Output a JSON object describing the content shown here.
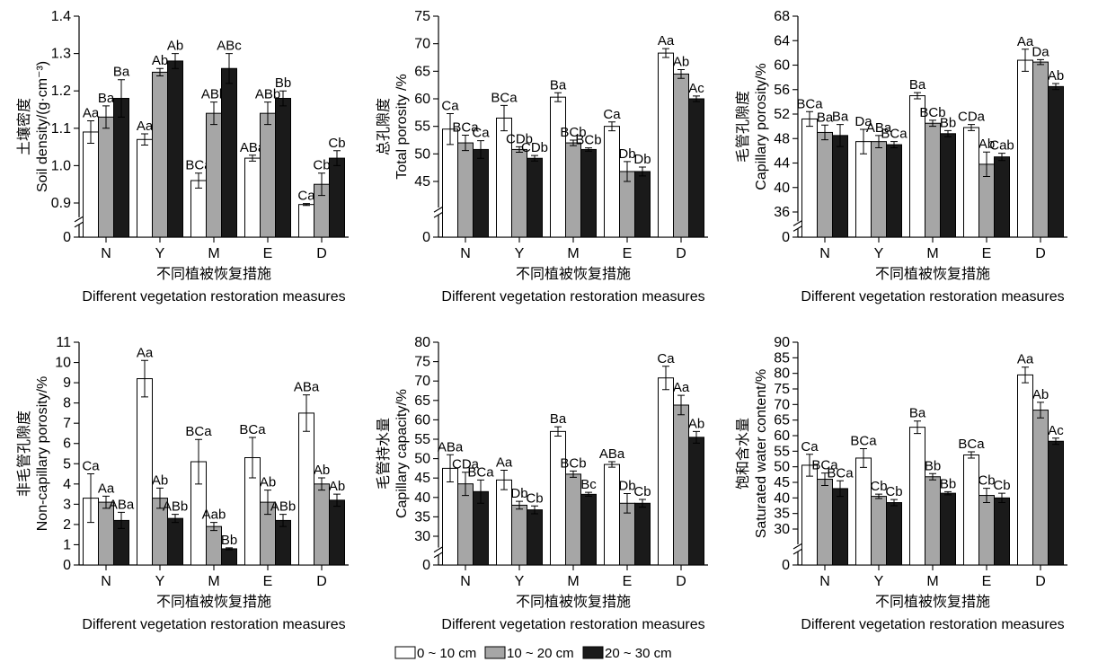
{
  "colors": {
    "s1_fill": "#ffffff",
    "s2_fill": "#a6a6a6",
    "s3_fill": "#1a1a1a",
    "stroke": "#000000"
  },
  "legend": {
    "items": [
      {
        "label": "0 ~ 10 cm",
        "color": "#ffffff"
      },
      {
        "label": "10 ~ 20 cm",
        "color": "#a6a6a6"
      },
      {
        "label": "20 ~ 30 cm",
        "color": "#1a1a1a"
      }
    ]
  },
  "chart_data": [
    {
      "type": "bar",
      "categories": [
        "N",
        "Y",
        "M",
        "E",
        "D"
      ],
      "ylabel_cn": "土壤密度",
      "ylabel_en": "Soil density/(g·cm⁻³)",
      "xlabel_cn": "不同植被恢复措施",
      "xlabel_en": "Different vegetation restoration measures",
      "axis_break": true,
      "break_range": [
        0,
        0.8
      ],
      "yticks": [
        0,
        0.9,
        1.0,
        1.1,
        1.2,
        1.3,
        1.4
      ],
      "ytick_labels": [
        "0",
        "0.9",
        "1.0",
        "1.1",
        "1.2",
        "1.3",
        "1.4"
      ],
      "series": [
        {
          "values": [
            1.09,
            1.07,
            0.96,
            1.02,
            0.86
          ],
          "errors": [
            0.03,
            0.015,
            0.02,
            0.008,
            0.025
          ],
          "labels": [
            "Aa",
            "Aa",
            "BCa",
            "ABa",
            "Ca"
          ]
        },
        {
          "values": [
            1.13,
            1.25,
            1.14,
            1.14,
            0.95
          ],
          "errors": [
            0.03,
            0.01,
            0.03,
            0.03,
            0.03
          ],
          "labels": [
            "Ba",
            "Ab",
            "ABb",
            "ABb",
            "Cb"
          ]
        },
        {
          "values": [
            1.18,
            1.28,
            1.26,
            1.18,
            1.02
          ],
          "errors": [
            0.05,
            0.02,
            0.04,
            0.02,
            0.02
          ],
          "labels": [
            "Ba",
            "Ab",
            "ABc",
            "Bb",
            "Cb"
          ]
        }
      ]
    },
    {
      "type": "bar",
      "categories": [
        "N",
        "Y",
        "M",
        "E",
        "D"
      ],
      "ylabel_cn": "总孔隙度",
      "ylabel_en": "Total porosity /%",
      "xlabel_cn": "不同植被恢复措施",
      "xlabel_en": "Different vegetation restoration measures",
      "axis_break": true,
      "break_range": [
        0,
        40
      ],
      "yticks": [
        0,
        45,
        50,
        55,
        60,
        65,
        70,
        75
      ],
      "ytick_labels": [
        "0",
        "45",
        "50",
        "55",
        "60",
        "65",
        "70",
        "75"
      ],
      "series": [
        {
          "values": [
            54.5,
            56.5,
            60.3,
            55.0,
            68.3
          ],
          "errors": [
            2.8,
            2.3,
            0.8,
            0.8,
            0.8
          ],
          "labels": [
            "Ca",
            "BCa",
            "Ba",
            "Ca",
            "Aa"
          ]
        },
        {
          "values": [
            52.0,
            50.8,
            52.0,
            46.8,
            64.5
          ],
          "errors": [
            1.4,
            0.5,
            0.5,
            1.8,
            0.8
          ],
          "labels": [
            "BCa",
            "CDb",
            "BCb",
            "Db",
            "Ab"
          ]
        },
        {
          "values": [
            50.8,
            49.2,
            50.8,
            46.8,
            60.0
          ],
          "errors": [
            1.6,
            0.5,
            0.3,
            0.8,
            0.5
          ],
          "labels": [
            "Ca",
            "CDb",
            "BCb",
            "Db",
            "Ac"
          ]
        }
      ]
    },
    {
      "type": "bar",
      "categories": [
        "N",
        "Y",
        "M",
        "E",
        "D"
      ],
      "ylabel_cn": "毛管孔隙度",
      "ylabel_en": "Capillary porosity/%",
      "xlabel_cn": "不同植被恢复措施",
      "xlabel_en": "Different vegetation restoration measures",
      "axis_break": true,
      "break_range": [
        0,
        34
      ],
      "yticks": [
        0,
        36,
        40,
        44,
        48,
        52,
        56,
        60,
        64,
        68
      ],
      "ytick_labels": [
        "0",
        "36",
        "40",
        "44",
        "48",
        "52",
        "56",
        "60",
        "64",
        "68"
      ],
      "series": [
        {
          "values": [
            51.2,
            47.5,
            55.0,
            49.8,
            60.8
          ],
          "errors": [
            1.2,
            2.0,
            0.5,
            0.5,
            1.8
          ],
          "labels": [
            "BCa",
            "Da",
            "Ba",
            "CDa",
            "Aa"
          ]
        },
        {
          "values": [
            49.0,
            47.5,
            50.5,
            43.8,
            60.5
          ],
          "errors": [
            1.2,
            1.0,
            0.5,
            2.0,
            0.4
          ],
          "labels": [
            "Ba",
            "ABa",
            "BCb",
            "Ab",
            "Da"
          ]
        },
        {
          "values": [
            48.5,
            47.0,
            48.8,
            45.0,
            56.5
          ],
          "errors": [
            1.8,
            0.5,
            0.5,
            0.6,
            0.5
          ],
          "labels": [
            "Ba",
            "BCa",
            "Bb",
            "Cab",
            "Ab"
          ]
        }
      ]
    },
    {
      "type": "bar",
      "categories": [
        "N",
        "Y",
        "M",
        "E",
        "D"
      ],
      "ylabel_cn": "非毛管孔隙度",
      "ylabel_en": "Non-capillary porosity/%",
      "xlabel_cn": "不同植被恢复措施",
      "xlabel_en": "Different vegetation restoration measures",
      "axis_break": false,
      "yticks": [
        0,
        1,
        2,
        3,
        4,
        5,
        6,
        7,
        8,
        9,
        10,
        11
      ],
      "ytick_labels": [
        "0",
        "1",
        "2",
        "3",
        "4",
        "5",
        "6",
        "7",
        "8",
        "9",
        "10",
        "11"
      ],
      "series": [
        {
          "values": [
            3.3,
            9.2,
            5.1,
            5.3,
            7.5
          ],
          "errors": [
            1.2,
            0.9,
            1.1,
            1.0,
            0.9
          ],
          "labels": [
            "Ca",
            "Aa",
            "BCa",
            "BCa",
            "ABa"
          ]
        },
        {
          "values": [
            3.1,
            3.3,
            1.9,
            3.1,
            4.0
          ],
          "errors": [
            0.3,
            0.5,
            0.2,
            0.6,
            0.3
          ],
          "labels": [
            "Aa",
            "Ab",
            "Aab",
            "Ab",
            "Ab"
          ]
        },
        {
          "values": [
            2.2,
            2.3,
            0.8,
            2.2,
            3.2
          ],
          "errors": [
            0.4,
            0.2,
            0.05,
            0.3,
            0.3
          ],
          "labels": [
            "ABa",
            "ABb",
            "Bb",
            "ABb",
            "Ab"
          ]
        }
      ]
    },
    {
      "type": "bar",
      "categories": [
        "N",
        "Y",
        "M",
        "E",
        "D"
      ],
      "ylabel_cn": "毛管持水量",
      "ylabel_en": "Capillary capacity/%",
      "xlabel_cn": "不同植被恢复措施",
      "xlabel_en": "Different vegetation restoration measures",
      "axis_break": true,
      "break_range": [
        0,
        28
      ],
      "yticks": [
        0,
        30,
        35,
        40,
        45,
        50,
        55,
        60,
        65,
        70,
        75,
        80
      ],
      "ytick_labels": [
        "0",
        "30",
        "35",
        "40",
        "45",
        "50",
        "55",
        "60",
        "65",
        "70",
        "75",
        "80"
      ],
      "series": [
        {
          "values": [
            47.5,
            44.5,
            57.0,
            48.5,
            70.8
          ],
          "errors": [
            3.5,
            2.5,
            1.2,
            0.7,
            3.0
          ],
          "labels": [
            "ABa",
            "Aa",
            "Ba",
            "ABa",
            "Ca"
          ]
        },
        {
          "values": [
            43.5,
            38.0,
            46.0,
            38.5,
            63.8
          ],
          "errors": [
            3.0,
            1.0,
            0.8,
            2.5,
            2.5
          ],
          "labels": [
            "CDa",
            "Db",
            "BCb",
            "Db",
            "Aa"
          ]
        },
        {
          "values": [
            41.5,
            36.8,
            40.8,
            38.5,
            55.5
          ],
          "errors": [
            3.0,
            1.0,
            0.5,
            1.0,
            1.5
          ],
          "labels": [
            "BCa",
            "Cb",
            "Bc",
            "Cb",
            "Ab"
          ]
        }
      ]
    },
    {
      "type": "bar",
      "categories": [
        "N",
        "Y",
        "M",
        "E",
        "D"
      ],
      "ylabel_cn": "饱和含水量",
      "ylabel_en": "Saturated water content/%",
      "xlabel_cn": "不同植被恢复措施",
      "xlabel_en": "Different vegetation restoration measures",
      "axis_break": true,
      "break_range": [
        0,
        28
      ],
      "yticks": [
        0,
        30,
        35,
        40,
        45,
        50,
        55,
        60,
        65,
        70,
        75,
        80,
        85,
        90
      ],
      "ytick_labels": [
        "0",
        "30",
        "35",
        "40",
        "45",
        "50",
        "55",
        "60",
        "65",
        "70",
        "75",
        "80",
        "85",
        "90"
      ],
      "series": [
        {
          "values": [
            50.5,
            52.8,
            62.7,
            53.8,
            79.5
          ],
          "errors": [
            3.5,
            3.0,
            2.0,
            1.0,
            2.5
          ],
          "labels": [
            "Ca",
            "BCa",
            "Ba",
            "BCa",
            "Aa"
          ]
        },
        {
          "values": [
            46.0,
            40.5,
            46.8,
            40.8,
            68.2
          ],
          "errors": [
            2.0,
            0.7,
            1.0,
            2.3,
            2.5
          ],
          "labels": [
            "BCa",
            "Cb",
            "Bb",
            "Cb",
            "Ab"
          ]
        },
        {
          "values": [
            43.0,
            38.5,
            41.5,
            40.0,
            58.2
          ],
          "errors": [
            2.5,
            1.0,
            0.5,
            1.5,
            1.0
          ],
          "labels": [
            "BCa",
            "Cb",
            "Bb",
            "Cb",
            "Ac"
          ]
        }
      ]
    }
  ]
}
